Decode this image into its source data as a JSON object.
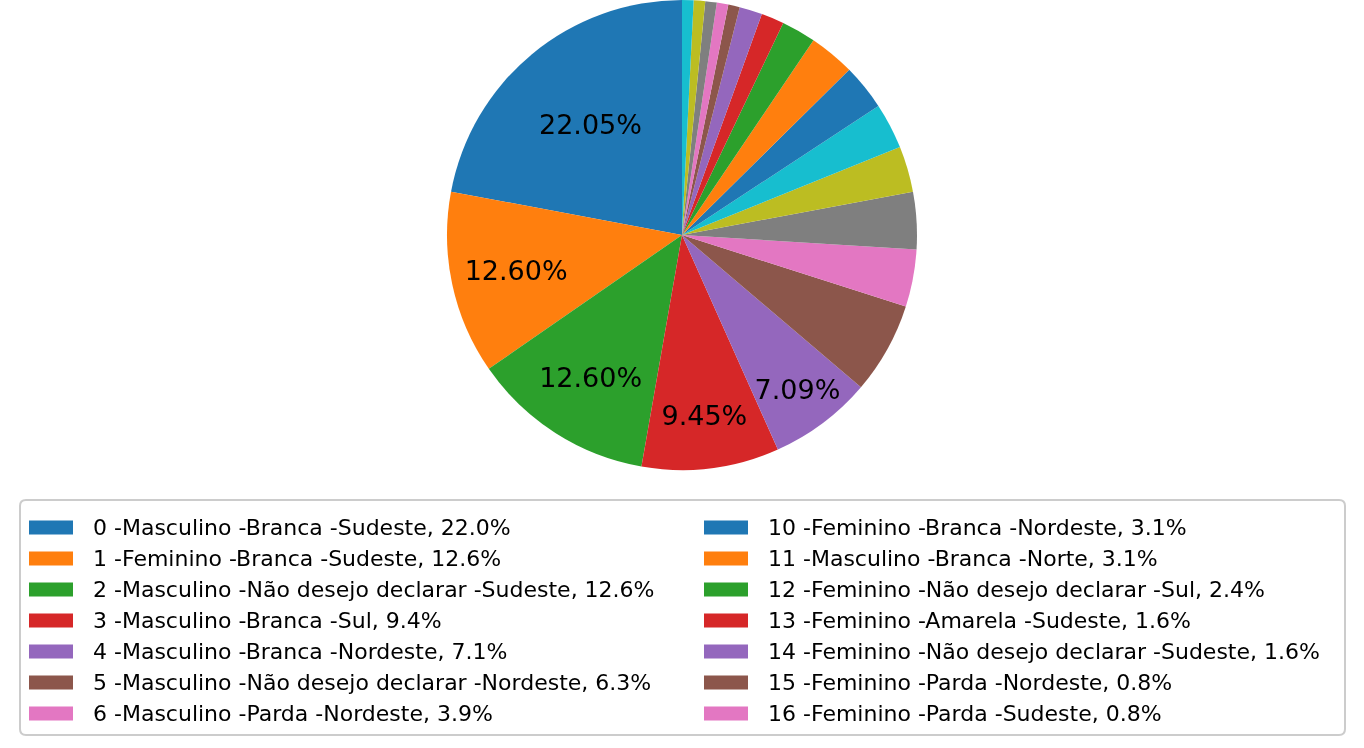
{
  "chart_data": {
    "type": "pie",
    "categories": [
      "0 -Masculino -Branca -Sudeste, 22.0%",
      "1 -Feminino -Branca -Sudeste, 12.6%",
      "2 -Masculino -Não desejo declarar -Sudeste, 12.6%",
      "3 -Masculino -Branca -Sul, 9.4%",
      "4 -Masculino -Branca -Nordeste, 7.1%",
      "5 -Masculino -Não desejo declarar -Nordeste, 6.3%",
      "6 -Masculino -Parda -Nordeste, 3.9%",
      null,
      null,
      null,
      "10 -Feminino -Branca -Nordeste, 3.1%",
      "11 -Masculino -Branca -Norte, 3.1%",
      "12 -Feminino -Não desejo declarar -Sul, 2.4%",
      "13 -Feminino -Amarela -Sudeste, 1.6%",
      "14 -Feminino -Não desejo declarar -Sudeste, 1.6%",
      "15 -Feminino -Parda -Nordeste, 0.8%",
      "16 -Feminino -Parda -Sudeste, 0.8%",
      null,
      null,
      null
    ],
    "values": [
      22.05,
      12.6,
      12.6,
      9.45,
      7.09,
      6.3,
      3.94,
      3.94,
      3.15,
      3.15,
      3.15,
      3.15,
      2.36,
      1.57,
      1.57,
      0.79,
      0.79,
      0.79,
      0.79,
      0.79
    ],
    "colors": [
      "#1f77b4",
      "#ff7f0e",
      "#2ca02c",
      "#d62728",
      "#9467bd",
      "#8c564b",
      "#e377c2",
      "#7f7f7f",
      "#bcbd22",
      "#17becf",
      "#1f77b4",
      "#ff7f0e",
      "#2ca02c",
      "#d62728",
      "#9467bd",
      "#8c564b",
      "#e377c2",
      "#7f7f7f",
      "#bcbd22",
      "#17becf"
    ],
    "value_labels": [
      "22.05%",
      "12.60%",
      "12.60%",
      "9.45%",
      "7.09%",
      null,
      null,
      null,
      null,
      null,
      null,
      null,
      null,
      null,
      null,
      null,
      null,
      null,
      null,
      null
    ],
    "legend": "bottom"
  }
}
